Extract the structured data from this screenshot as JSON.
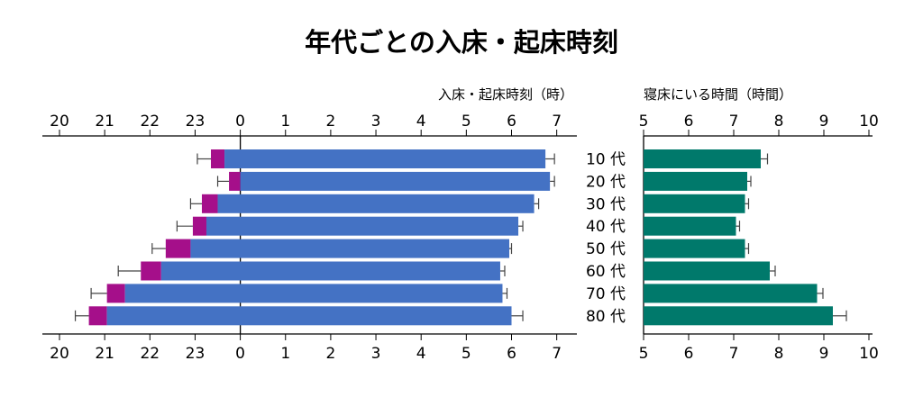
{
  "title": "年代ごとの入床・起床時刻",
  "left_axis_label": "入床・起床時刻（時）",
  "right_axis_label": "寝床にいる時間（時間）",
  "chart_data": [
    {
      "type": "bar",
      "orientation": "horizontal",
      "stacked": true,
      "title": "年代ごとの入床・起床時刻",
      "xlabel": "入床・起床時刻（時）",
      "categories": [
        "10 代",
        "20 代",
        "30 代",
        "40 代",
        "50 代",
        "60 代",
        "70 代",
        "80 代"
      ],
      "xlim": [
        20,
        7.4
      ],
      "x_ticks": [
        20,
        21,
        22,
        23,
        0,
        1,
        2,
        3,
        4,
        5,
        6,
        7
      ],
      "series": [
        {
          "color": "#a50f8a",
          "bedtime_start": [
            23.35,
            23.75,
            23.15,
            22.95,
            22.35,
            21.8,
            21.05,
            20.65
          ],
          "bedtime_error_left": [
            23.05,
            23.5,
            22.9,
            22.6,
            22.05,
            21.3,
            20.7,
            20.35
          ],
          "sleep_onset": [
            23.65,
            24.0,
            23.5,
            23.25,
            22.9,
            22.25,
            21.45,
            21.05
          ]
        },
        {
          "color": "#4472c4",
          "sleep_onset": [
            23.65,
            24.0,
            23.5,
            23.25,
            22.9,
            22.25,
            21.45,
            21.05
          ],
          "wake_time": [
            30.75,
            30.85,
            30.5,
            30.15,
            29.95,
            29.75,
            29.8,
            30.0
          ],
          "wake_error_right": [
            30.95,
            30.95,
            30.6,
            30.25,
            30.0,
            29.85,
            29.9,
            30.25
          ]
        }
      ]
    },
    {
      "type": "bar",
      "orientation": "horizontal",
      "xlabel": "寝床にいる時間（時間）",
      "categories": [
        "10 代",
        "20 代",
        "30 代",
        "40 代",
        "50 代",
        "60 代",
        "70 代",
        "80 代"
      ],
      "xlim": [
        5,
        10
      ],
      "x_ticks": [
        5,
        6,
        7,
        8,
        9,
        10
      ],
      "color": "#00796b",
      "values": [
        7.6,
        7.3,
        7.25,
        7.05,
        7.25,
        7.8,
        8.85,
        9.2
      ],
      "error_right": [
        7.75,
        7.38,
        7.33,
        7.13,
        7.33,
        7.92,
        8.98,
        9.5
      ]
    }
  ]
}
